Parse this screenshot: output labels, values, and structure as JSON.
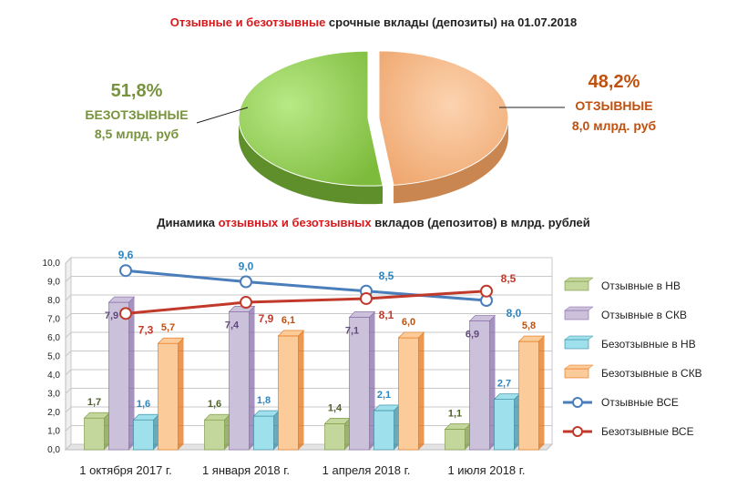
{
  "pie": {
    "title_red": "Отзывные и безотзывные",
    "title_rest": " срочные вклады (депозиты) на 01.07.2018",
    "left": {
      "pct": "51,8%",
      "name": "БЕЗОТЗЫВНЫЕ",
      "amount": "8,5 млрд. руб",
      "color": "#77933c"
    },
    "right": {
      "pct": "48,2%",
      "name": "ОТЗЫВНЫЕ",
      "amount": "8,0 млрд. руб",
      "color": "#c0500e"
    }
  },
  "bar": {
    "title_pre": "Динамика ",
    "title_red": "отзывных и безотзывных",
    "title_post": " вкладов (депозитов) в млрд. рублей"
  },
  "chart_data": [
    {
      "type": "pie",
      "categories": [
        "БЕЗОТЗЫВНЫЕ",
        "ОТЗЫВНЫЕ"
      ],
      "values": [
        51.8,
        48.2
      ],
      "colors": [
        "#92d050",
        "#f5b98a"
      ]
    },
    {
      "type": "bar",
      "categories": [
        "1 октября 2017 г.",
        "1 января 2018 г.",
        "1 апреля 2018 г.",
        "1 июля 2018 г."
      ],
      "ylim": [
        0,
        10
      ],
      "yticks": [
        "0,0",
        "1,0",
        "2,0",
        "3,0",
        "4,0",
        "5,0",
        "6,0",
        "7,0",
        "8,0",
        "9,0",
        "10,0"
      ],
      "grid": true,
      "legend_position": "right",
      "series": [
        {
          "name": "Отзывные в НВ",
          "kind": "bar",
          "values": [
            1.7,
            1.6,
            1.4,
            1.1
          ],
          "labels": [
            "1,7",
            "1,6",
            "1,4",
            "1,1"
          ],
          "color": "#c3d69b",
          "dark": "#76923c",
          "label_color": "#4f6228"
        },
        {
          "name": "Отзывные в СКВ",
          "kind": "bar",
          "values": [
            7.9,
            7.4,
            7.1,
            6.9
          ],
          "labels": [
            "7,9",
            "7,4",
            "7,1",
            "6,9"
          ],
          "color": "#ccc1da",
          "dark": "#8064a2",
          "label_color": "#5f497a"
        },
        {
          "name": "Безотзывные в НВ",
          "kind": "bar",
          "values": [
            1.6,
            1.8,
            2.1,
            2.7
          ],
          "labels": [
            "1,6",
            "1,8",
            "2,1",
            "2,7"
          ],
          "color": "#9ee0ec",
          "dark": "#31859c",
          "label_color": "#2e86c1"
        },
        {
          "name": "Безотзывные в СКВ",
          "kind": "bar",
          "values": [
            5.7,
            6.1,
            6.0,
            5.8
          ],
          "labels": [
            "5,7",
            "6,1",
            "6,0",
            "5,8"
          ],
          "color": "#fbcb9a",
          "dark": "#e46c0a",
          "label_color": "#c0500e"
        },
        {
          "name": "Отзывные ВСЕ",
          "kind": "line",
          "values": [
            9.6,
            9.0,
            8.5,
            8.0
          ],
          "labels": [
            "9,6",
            "9,0",
            "8,5",
            "8,0"
          ],
          "color": "#4a7ebb",
          "label_color": "#2e86c1"
        },
        {
          "name": "Безотзывные ВСЕ",
          "kind": "line",
          "values": [
            7.3,
            7.9,
            8.1,
            8.5
          ],
          "labels": [
            "7,3",
            "7,9",
            "8,1",
            "8,5"
          ],
          "color": "#c0392b",
          "label_color": "#c0392b"
        }
      ]
    }
  ]
}
